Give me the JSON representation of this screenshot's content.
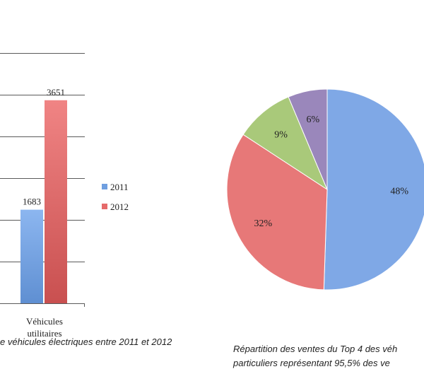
{
  "chart_data": [
    {
      "type": "bar",
      "categories": [
        "Véhicules utilitaires"
      ],
      "category_lines": [
        "Véhicules",
        "utilitaires"
      ],
      "series": [
        {
          "name": "2011",
          "values": [
            1683
          ],
          "color": "#6f9fe0"
        },
        {
          "name": "2012",
          "values": [
            3651
          ],
          "color": "#e56a6a"
        }
      ],
      "data_labels": [
        "1683",
        "3651"
      ],
      "ylim": [
        0,
        4500
      ],
      "grid": true,
      "legend": "right",
      "caption": "e véhicules électriques entre 2011 et 2012"
    },
    {
      "type": "pie",
      "slices": [
        {
          "label": "48%",
          "value": 48,
          "color": "#7fa8e6"
        },
        {
          "label": "32%",
          "value": 32,
          "color": "#e77878"
        },
        {
          "label": "9%",
          "value": 9,
          "color": "#a9c97a"
        },
        {
          "label": "6%",
          "value": 6,
          "color": "#9a87bb"
        }
      ],
      "caption_lines": [
        "Répartition des ventes du Top 4 des véh",
        "particuliers  représentant 95,5% des ve"
      ]
    }
  ]
}
